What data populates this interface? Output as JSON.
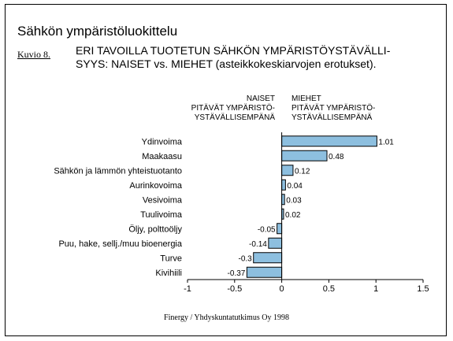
{
  "page": {
    "title": "Sähkön ympäristöluokittelu",
    "figure_label": "Kuvio 8.",
    "subtitle_line1": "ERI TAVOILLA TUOTETUN SÄHKÖN YMPÄRISTÖYSTÄVÄLLI-",
    "subtitle_line2": "SYYS:  NAISET vs. MIEHET (asteikkokeskiarvojen erotukset).",
    "header_left": [
      "NAISET",
      "PITÄVÄT YMPÄRISTÖ-",
      "YSTÄVÄLLISEMPÄNÄ"
    ],
    "header_right": [
      "MIEHET",
      "PITÄVÄT YMPÄRISTÖ-",
      "YSTÄVÄLLISEMPÄNÄ"
    ],
    "source": "Finergy / Yhdyskuntatutkimus Oy 1998"
  },
  "colors": {
    "bar_fill": "#8dbfdf",
    "bar_stroke": "#000000"
  },
  "chart_data": {
    "type": "bar",
    "orientation": "horizontal",
    "categories": [
      "Ydinvoima",
      "Maakaasu",
      "Sähkön ja lämmön yhteistuotanto",
      "Aurinkovoima",
      "Vesivoima",
      "Tuulivoima",
      "Öljy, polttoöljy",
      "Puu, hake, sellj./muu bioenergia",
      "Turve",
      "Kivihiili"
    ],
    "values": [
      1.01,
      0.48,
      0.12,
      0.04,
      0.03,
      0.02,
      -0.05,
      -0.14,
      -0.3,
      -0.37
    ],
    "value_labels": [
      "1.01",
      "0.48",
      "0.12",
      "0.04",
      "0.03",
      "0.02",
      "-0.05",
      "-0.14",
      "-0.3",
      "-0.37"
    ],
    "xlim": [
      -1,
      1.5
    ],
    "xticks": [
      -1,
      -0.5,
      0,
      0.5,
      1,
      1.5
    ],
    "xtick_labels": [
      "-1",
      "-0.5",
      "0",
      "0.5",
      "1",
      "1.5"
    ],
    "grid": false
  }
}
